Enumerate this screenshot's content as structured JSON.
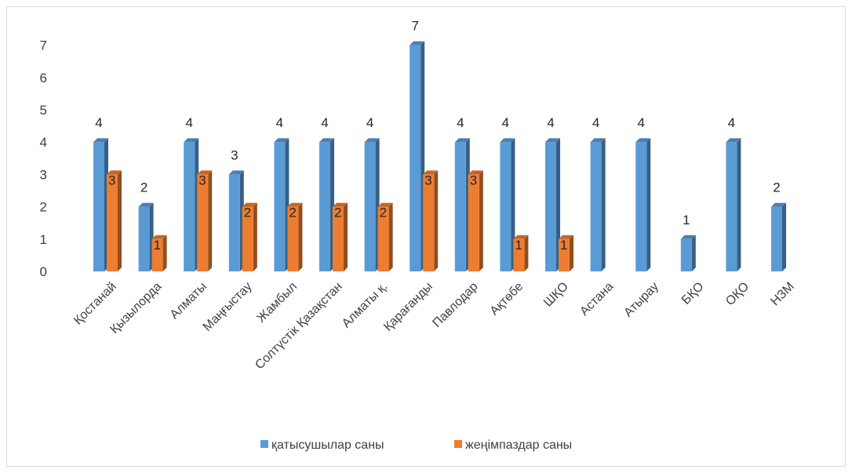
{
  "chart_data": {
    "type": "bar",
    "categories": [
      "Қостанай",
      "Қызылорда",
      "Алматы",
      "Маңғыстау",
      "Жамбыл",
      "Солтүстік Қазақстан",
      "Алматы қ.",
      "Қарағанды",
      "Павлодар",
      "Ақтөбе",
      "ШҚО",
      "Астана",
      "Атырау",
      "БҚО",
      "ОҚО",
      "НЗМ"
    ],
    "series": [
      {
        "name": "қатысушылар саны",
        "color": "#5b9bd5",
        "values": [
          4,
          2,
          4,
          3,
          4,
          4,
          4,
          7,
          4,
          4,
          4,
          4,
          4,
          1,
          4,
          2
        ]
      },
      {
        "name": "жеңімпаздар саны",
        "color": "#ed7d31",
        "values": [
          3,
          1,
          3,
          2,
          2,
          2,
          2,
          3,
          3,
          1,
          1,
          null,
          null,
          null,
          null,
          null
        ]
      }
    ],
    "y_ticks": [
      0,
      1,
      2,
      3,
      4,
      5,
      6,
      7
    ],
    "ylim": [
      0,
      7
    ],
    "grid": false,
    "legend_position": "bottom",
    "data_labels": true,
    "style": "3d-bar"
  }
}
